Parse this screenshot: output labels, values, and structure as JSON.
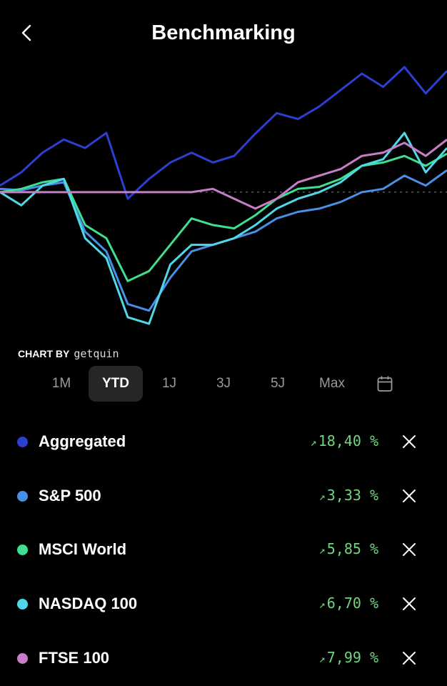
{
  "header": {
    "title": "Benchmarking",
    "back_icon": "chevron-left-icon"
  },
  "chart_by": {
    "label": "CHART BY",
    "brand": "getquin"
  },
  "ranges": [
    {
      "label": "1M",
      "active": false
    },
    {
      "label": "YTD",
      "active": true
    },
    {
      "label": "1J",
      "active": false
    },
    {
      "label": "3J",
      "active": false
    },
    {
      "label": "5J",
      "active": false
    },
    {
      "label": "Max",
      "active": false
    }
  ],
  "calendar_icon": "calendar-icon",
  "benchmarks": [
    {
      "name": "Aggregated",
      "color": "#2b3fd0",
      "arrow": "↗",
      "value": "18,40",
      "unit": "%"
    },
    {
      "name": "S&P 500",
      "color": "#4a8fe6",
      "arrow": "↗",
      "value": "3,33",
      "unit": "%"
    },
    {
      "name": "MSCI World",
      "color": "#3ee08f",
      "arrow": "↗",
      "value": "5,85",
      "unit": "%"
    },
    {
      "name": "NASDAQ 100",
      "color": "#4fd8e8",
      "arrow": "↗",
      "value": "6,70",
      "unit": "%"
    },
    {
      "name": "FTSE 100",
      "color": "#c77dc8",
      "arrow": "↗",
      "value": "7,99",
      "unit": "%"
    }
  ],
  "chart_data": {
    "type": "line",
    "ylim": [
      -24,
      20.5
    ],
    "baseline": 0,
    "grid": false,
    "axes_visible": false,
    "series": [
      {
        "name": "Aggregated",
        "color": "#2b3fd0",
        "values": [
          1.0,
          3,
          6,
          8,
          6.7,
          9,
          -1,
          2,
          4.5,
          6,
          4.5,
          5.5,
          8.9,
          12,
          11.1,
          13,
          15.5,
          18,
          16,
          19,
          15,
          18.4
        ]
      },
      {
        "name": "S&P 500",
        "color": "#4a8fe6",
        "values": [
          0.5,
          0.3,
          1,
          1.5,
          -6,
          -9,
          -17,
          -18,
          -13,
          -9,
          -8,
          -7,
          -6,
          -4,
          -3,
          -2.5,
          -1.5,
          0,
          0.5,
          2.5,
          1,
          3.33
        ]
      },
      {
        "name": "MSCI World",
        "color": "#3ee08f",
        "values": [
          0,
          0.5,
          1.5,
          2,
          -5,
          -7,
          -13.5,
          -12,
          -8,
          -4,
          -5,
          -5.5,
          -3.5,
          -1,
          0.5,
          0.8,
          2,
          4,
          4.5,
          5.5,
          4,
          5.85
        ]
      },
      {
        "name": "NASDAQ 100",
        "color": "#4fd8e8",
        "values": [
          0,
          -2,
          1,
          2,
          -7,
          -10,
          -19,
          -20,
          -11,
          -8,
          -8,
          -7,
          -5,
          -2.5,
          -1,
          0,
          1.5,
          4,
          5,
          9,
          3,
          6.7
        ]
      },
      {
        "name": "FTSE 100",
        "color": "#c77dc8",
        "values": [
          0,
          0,
          0,
          0,
          0,
          0,
          0,
          0,
          0,
          0,
          0.5,
          -1,
          -2.5,
          -1,
          1.5,
          2.5,
          3.5,
          5.5,
          6,
          7.5,
          5.5,
          7.99
        ]
      }
    ]
  }
}
